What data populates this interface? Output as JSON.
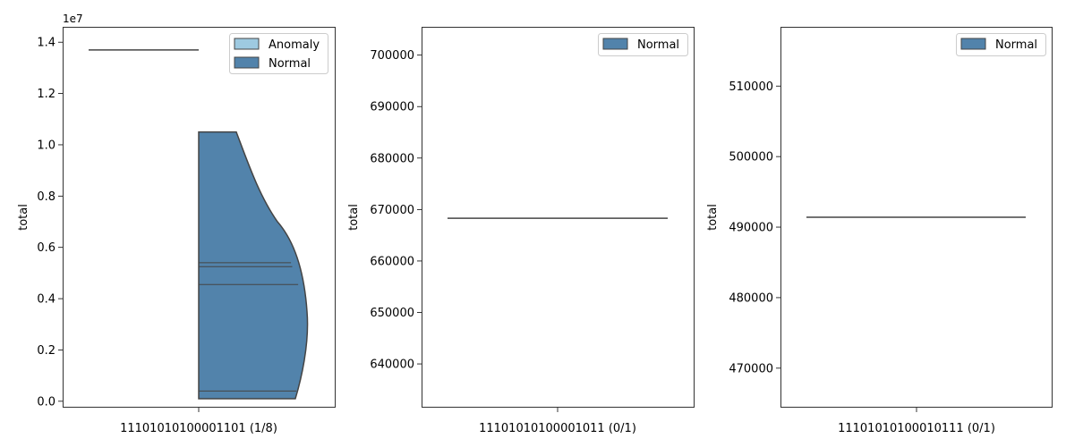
{
  "chart_data": [
    {
      "type": "violin",
      "category": "11101010100001101 (1/8)",
      "ylabel": "total",
      "ylim": [
        -250000,
        14600000
      ],
      "yticks": [
        "0.0",
        "0.2",
        "0.4",
        "0.6",
        "0.8",
        "1.0",
        "1.2",
        "1.4"
      ],
      "ytick_values": [
        0,
        2000000,
        4000000,
        6000000,
        8000000,
        10000000,
        12000000,
        14000000
      ],
      "offset_label": "1e7",
      "legend": [
        "Anomaly",
        "Normal"
      ],
      "colors": {
        "Anomaly": "#9ecae1",
        "Normal": "#5283ab",
        "edge": "#444444"
      },
      "anomaly_values": [
        13700000
      ],
      "normal_range": [
        100000,
        10500000
      ],
      "normal_quartile_lines": [
        400000,
        4550000,
        5250000,
        5400000
      ]
    },
    {
      "type": "violin",
      "category": "11101010100001011 (0/1)",
      "ylabel": "total",
      "ylim": [
        631500,
        705500
      ],
      "yticks": [
        "640000",
        "650000",
        "660000",
        "670000",
        "680000",
        "690000",
        "700000"
      ],
      "ytick_values": [
        640000,
        650000,
        660000,
        670000,
        680000,
        690000,
        700000
      ],
      "legend": [
        "Normal"
      ],
      "colors": {
        "Normal": "#5283ab",
        "edge": "#444444"
      },
      "normal_values": [
        668300
      ]
    },
    {
      "type": "violin",
      "category": "11101010100010111 (0/1)",
      "ylabel": "total",
      "ylim": [
        464400,
        518400
      ],
      "yticks": [
        "470000",
        "480000",
        "490000",
        "500000",
        "510000"
      ],
      "ytick_values": [
        470000,
        480000,
        490000,
        500000,
        510000
      ],
      "legend": [
        "Normal"
      ],
      "colors": {
        "Normal": "#5283ab",
        "edge": "#444444"
      },
      "normal_values": [
        491400
      ]
    }
  ]
}
